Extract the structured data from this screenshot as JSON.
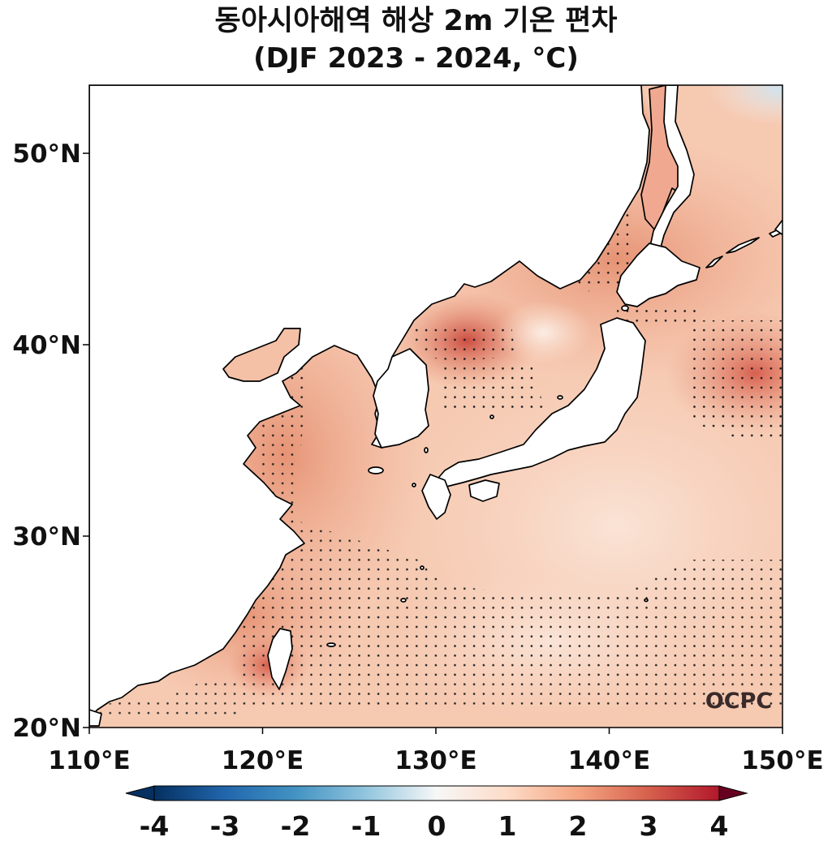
{
  "title_line1": "동아시아해역 해상 2m 기온 편차",
  "title_line2": "(DJF 2023 - 2024, °C)",
  "map": {
    "lon_range": [
      110,
      150
    ],
    "lat_range": [
      20,
      53.5
    ],
    "lon_ticks": [
      "110°E",
      "120°E",
      "130°E",
      "140°E",
      "150°E"
    ],
    "lat_ticks": [
      "20°N",
      "30°N",
      "40°N",
      "50°N"
    ],
    "logo": "OCPC"
  },
  "colorbar": {
    "range": [
      -4,
      4
    ],
    "tick_labels": [
      "-4",
      "-3",
      "-2",
      "-1",
      "0",
      "1",
      "2",
      "3",
      "4"
    ],
    "colors": [
      "#053061",
      "#2166ac",
      "#4393c3",
      "#92c5de",
      "#f7f7f7",
      "#fddbc7",
      "#f4a582",
      "#d6604d",
      "#b2182b",
      "#67001f"
    ]
  }
}
